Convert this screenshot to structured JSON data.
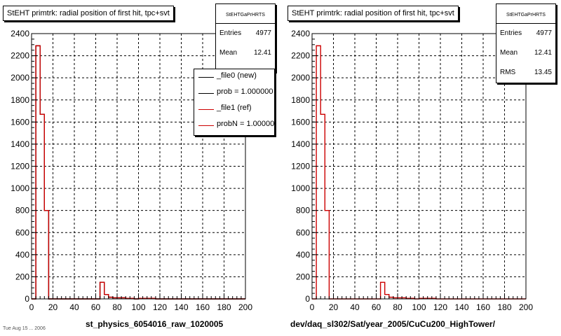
{
  "chart_data": [
    {
      "type": "histogram",
      "title": "StEHT primtrk: radial position of first hit, tpc+svt",
      "xlabel": "st_physics_6054016_raw_1020005",
      "xlim": [
        0,
        200
      ],
      "ylim": [
        0,
        2400
      ],
      "xticks": [
        "0",
        "20",
        "40",
        "60",
        "80",
        "100",
        "120",
        "140",
        "160",
        "180",
        "200"
      ],
      "yticks": [
        "0",
        "200",
        "400",
        "600",
        "800",
        "1000",
        "1200",
        "1400",
        "1600",
        "1800",
        "2000",
        "2200",
        "2400"
      ],
      "grid": true,
      "bin_width": 4,
      "series": [
        {
          "name": "_file0 (new)",
          "color": "#000000",
          "values": [
            0,
            2290,
            1670,
            800,
            0,
            0,
            0,
            0,
            0,
            0,
            0,
            0,
            0,
            0,
            0,
            0,
            150,
            40,
            15,
            10,
            10,
            10,
            5,
            5,
            0,
            5,
            5,
            5,
            5,
            0,
            0,
            0,
            0,
            0,
            0,
            0,
            0,
            0,
            0,
            0,
            0,
            0,
            0,
            0,
            0,
            0,
            0,
            0,
            0,
            0
          ]
        },
        {
          "name": "_file1 (ref)",
          "color": "#cc0000",
          "values": [
            0,
            2290,
            1670,
            800,
            0,
            0,
            0,
            0,
            0,
            0,
            0,
            0,
            0,
            0,
            0,
            0,
            150,
            40,
            15,
            10,
            10,
            10,
            5,
            5,
            0,
            5,
            5,
            5,
            5,
            0,
            0,
            0,
            0,
            0,
            0,
            0,
            0,
            0,
            0,
            0,
            0,
            0,
            0,
            0,
            0,
            0,
            0,
            0,
            0,
            0
          ]
        }
      ],
      "stats": {
        "name": "StEHTGaPrHRTS",
        "entries": "4977",
        "mean": "12.41"
      },
      "legend": [
        {
          "label": "_file0 (new)",
          "color": "#000000"
        },
        {
          "label": "prob = 1.000000",
          "color": "#000000"
        },
        {
          "label": "_file1 (ref)",
          "color": "#cc0000"
        },
        {
          "label": "probN = 1.000000",
          "color": "#cc0000"
        }
      ]
    },
    {
      "type": "histogram",
      "title": "StEHT primtrk: radial position of first hit, tpc+svt",
      "xlabel": "dev/daq_sl302/Sat/year_2005/CuCu200_HighTower/",
      "xlim": [
        0,
        200
      ],
      "ylim": [
        0,
        2400
      ],
      "xticks": [
        "0",
        "20",
        "40",
        "60",
        "80",
        "100",
        "120",
        "140",
        "160",
        "180",
        "200"
      ],
      "yticks": [
        "0",
        "200",
        "400",
        "600",
        "800",
        "1000",
        "1200",
        "1400",
        "1600",
        "1800",
        "2000",
        "2200",
        "2400"
      ],
      "grid": true,
      "bin_width": 4,
      "series": [
        {
          "name": "",
          "color": "#cc0000",
          "values": [
            0,
            2290,
            1670,
            800,
            0,
            0,
            0,
            0,
            0,
            0,
            0,
            0,
            0,
            0,
            0,
            0,
            150,
            40,
            15,
            10,
            10,
            10,
            5,
            5,
            0,
            5,
            5,
            5,
            5,
            0,
            0,
            0,
            0,
            0,
            0,
            0,
            0,
            0,
            0,
            0,
            0,
            0,
            0,
            0,
            0,
            0,
            0,
            0,
            0,
            0
          ]
        }
      ],
      "stats": {
        "name": "StEHTGaPrHRTS",
        "entries": "4977",
        "mean": "12.41",
        "rms": "13.45"
      }
    }
  ],
  "labels": {
    "entries": "Entries",
    "mean": "Mean",
    "rms": "RMS"
  },
  "footer": "Tue Aug 15 ... 2006"
}
